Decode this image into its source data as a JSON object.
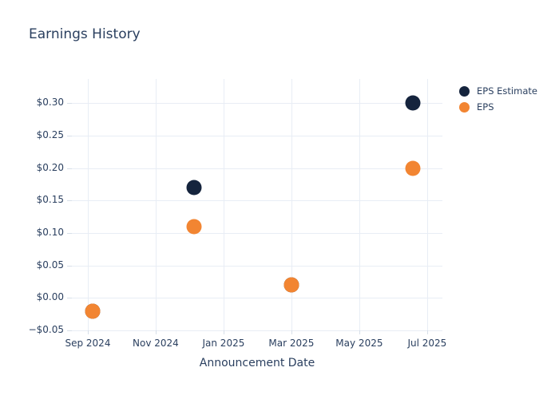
{
  "chart_data": {
    "type": "scatter",
    "title": "Earnings History",
    "xlabel": "Announcement Date",
    "ylabel": "",
    "grid": true,
    "legend_position": "outside-top-right",
    "x_axis": {
      "tick_labels": [
        "Sep 2024",
        "Nov 2024",
        "Jan 2025",
        "Mar 2025",
        "May 2025",
        "Jul 2025"
      ],
      "tick_months": [
        0,
        2,
        4,
        6,
        8,
        10
      ],
      "xlim_months": [
        -0.47,
        10.45
      ]
    },
    "y_axis": {
      "tick_labels": [
        "$0.30",
        "$0.25",
        "$0.20",
        "$0.15",
        "$0.10",
        "$0.05",
        "$0.00",
        "−$0.05"
      ],
      "tick_values": [
        0.3,
        0.25,
        0.2,
        0.15,
        0.1,
        0.05,
        0.0,
        -0.05
      ],
      "ylim": [
        -0.05,
        0.337
      ]
    },
    "series": [
      {
        "name": "EPS Estimate",
        "color": "#15243d",
        "points": [
          {
            "x_months": 0.14,
            "quarter": "Sep 2024",
            "y": -0.02
          },
          {
            "x_months": 3.13,
            "quarter": "Dec 2024",
            "y": 0.17
          },
          {
            "x_months": 6.0,
            "quarter": "Mar 2025",
            "y": 0.02
          },
          {
            "x_months": 9.58,
            "quarter": "Jun 2025",
            "y": 0.3
          }
        ]
      },
      {
        "name": "EPS",
        "color": "#f28532",
        "points": [
          {
            "x_months": 0.14,
            "quarter": "Sep 2024",
            "y": -0.02
          },
          {
            "x_months": 3.13,
            "quarter": "Dec 2024",
            "y": 0.11
          },
          {
            "x_months": 6.0,
            "quarter": "Mar 2025",
            "y": 0.02
          },
          {
            "x_months": 9.58,
            "quarter": "Jun 2025",
            "y": 0.2
          }
        ]
      }
    ]
  },
  "colors": {
    "background": "#ffffff",
    "text": "#2a3f5f",
    "grid": "#e8edf5"
  }
}
